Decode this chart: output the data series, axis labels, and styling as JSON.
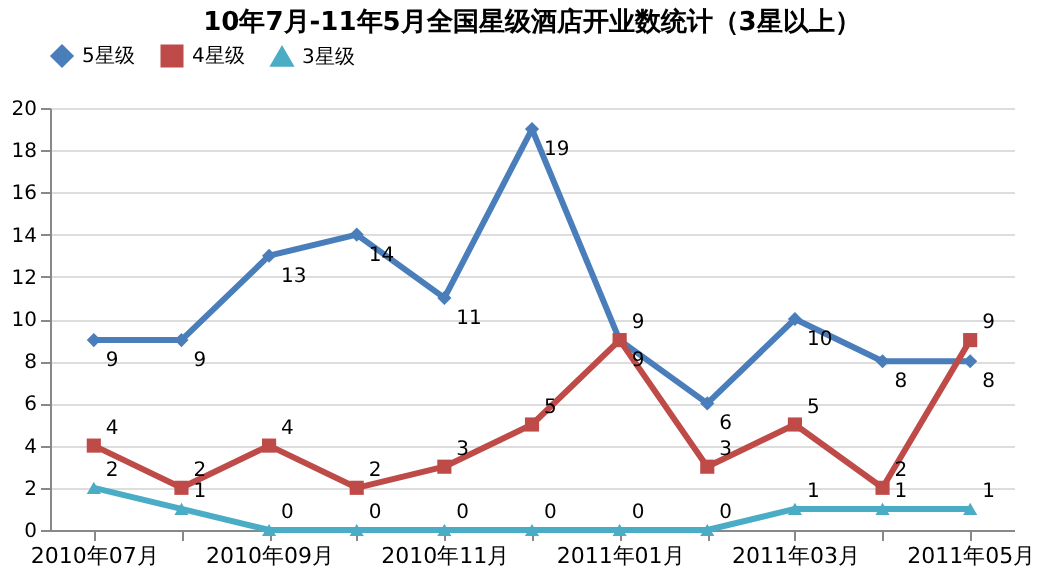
{
  "chart_data": {
    "type": "line",
    "title": "10年7月-11年5月全国星级酒店开业数统计（3星以上）",
    "categories": [
      "2010年07月",
      null,
      "2010年09月",
      null,
      "2010年11月",
      null,
      "2011年01月",
      null,
      "2011年03月",
      null,
      "2011年05月"
    ],
    "series": [
      {
        "name": "5星级",
        "color": "#4a7ebb",
        "marker": "diamond",
        "values": [
          9,
          9,
          13,
          14,
          11,
          19,
          9,
          6,
          10,
          8,
          8
        ]
      },
      {
        "name": "4星级",
        "color": "#be4b48",
        "marker": "square",
        "values": [
          4,
          2,
          4,
          2,
          3,
          5,
          9,
          3,
          5,
          2,
          9
        ]
      },
      {
        "name": "3星级",
        "color": "#4bacc6",
        "marker": "triangle",
        "values": [
          2,
          1,
          0,
          0,
          0,
          0,
          0,
          0,
          1,
          1,
          1
        ]
      }
    ],
    "ylim": [
      0,
      20
    ],
    "yticks": [
      0,
      2,
      4,
      6,
      8,
      10,
      12,
      14,
      16,
      18,
      20
    ],
    "grid": "y",
    "legend": "top",
    "data_labels": true,
    "line_style": "solid"
  }
}
